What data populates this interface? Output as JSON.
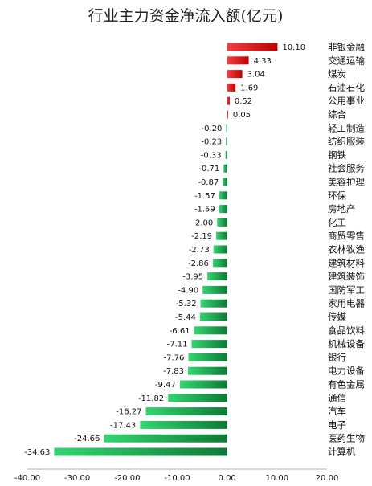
{
  "chart_data": {
    "type": "bar",
    "orientation": "horizontal",
    "title": "行业主力资金净流入额(亿元)",
    "xlabel": "",
    "ylabel": "",
    "xlim": [
      -40,
      20
    ],
    "xticks": [
      "-40.00",
      "-30.00",
      "-20.00",
      "-10.00",
      "0.00",
      "10.00",
      "20.00"
    ],
    "grid": false,
    "legend": "none",
    "colors": {
      "positive": "#d90000",
      "negative": "#1aa84a"
    },
    "categories": [
      "非银金融",
      "交通运输",
      "煤炭",
      "石油石化",
      "公用事业",
      "综合",
      "轻工制造",
      "纺织服装",
      "钢铁",
      "社会服务",
      "美容护理",
      "环保",
      "房地产",
      "化工",
      "商贸零售",
      "农林牧渔",
      "建筑材料",
      "建筑装饰",
      "国防军工",
      "家用电器",
      "传媒",
      "食品饮料",
      "机械设备",
      "银行",
      "电力设备",
      "有色金属",
      "通信",
      "汽车",
      "电子",
      "医药生物",
      "计算机"
    ],
    "values": [
      10.1,
      4.33,
      3.04,
      1.69,
      0.52,
      0.05,
      -0.2,
      -0.23,
      -0.33,
      -0.71,
      -0.87,
      -1.57,
      -1.59,
      -2.0,
      -2.19,
      -2.73,
      -2.86,
      -3.95,
      -4.9,
      -5.32,
      -5.44,
      -6.61,
      -7.11,
      -7.76,
      -7.83,
      -9.47,
      -11.82,
      -16.27,
      -17.43,
      -24.66,
      -34.63
    ],
    "value_labels": [
      "10.10",
      "4.33",
      "3.04",
      "1.69",
      "0.52",
      "0.05",
      "-0.20",
      "-0.23",
      "-0.33",
      "-0.71",
      "-0.87",
      "-1.57",
      "-1.59",
      "-2.00",
      "-2.19",
      "-2.73",
      "-2.86",
      "-3.95",
      "-4.90",
      "-5.32",
      "-5.44",
      "-6.61",
      "-7.11",
      "-7.76",
      "-7.83",
      "-9.47",
      "-11.82",
      "-16.27",
      "-17.43",
      "-24.66",
      "-34.63"
    ]
  }
}
